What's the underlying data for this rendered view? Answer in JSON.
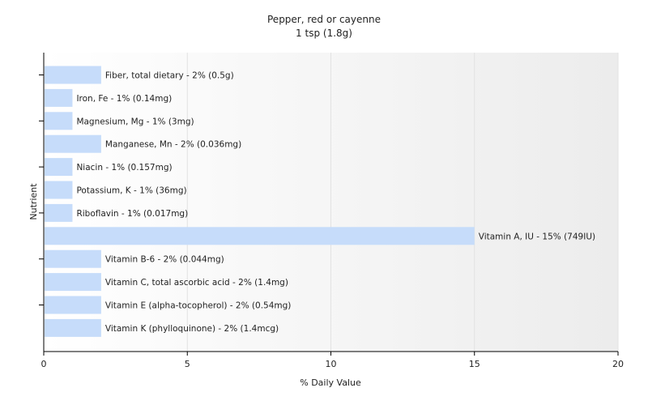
{
  "chart_data": {
    "type": "bar",
    "orientation": "horizontal",
    "title": "Pepper, red or cayenne",
    "subtitle": "1 tsp (1.8g)",
    "xlabel": "% Daily Value",
    "ylabel": "Nutrient",
    "xlim": [
      0,
      20
    ],
    "xticks": [
      "0",
      "5",
      "10",
      "15",
      "20"
    ],
    "grid": "vertical",
    "bar_color": "#c6dcfa",
    "background_gradient": [
      "#ffffff",
      "#ececec"
    ],
    "categories": [
      "Fiber, total dietary",
      "Iron, Fe",
      "Magnesium, Mg",
      "Manganese, Mn",
      "Niacin",
      "Potassium, K",
      "Riboflavin",
      "Vitamin A, IU",
      "Vitamin B-6",
      "Vitamin C, total ascorbic acid",
      "Vitamin E (alpha-tocopherol)",
      "Vitamin K (phylloquinone)"
    ],
    "values": [
      2,
      1,
      1,
      2,
      1,
      1,
      1,
      15,
      2,
      2,
      2,
      2
    ],
    "labels": [
      "Fiber, total dietary - 2% (0.5g)",
      "Iron, Fe - 1% (0.14mg)",
      "Magnesium, Mg - 1% (3mg)",
      "Manganese, Mn - 2% (0.036mg)",
      "Niacin - 1% (0.157mg)",
      "Potassium, K - 1% (36mg)",
      "Riboflavin - 1% (0.017mg)",
      "Vitamin A, IU - 15% (749IU)",
      "Vitamin B-6 - 2% (0.044mg)",
      "Vitamin C, total ascorbic acid - 2% (1.4mg)",
      "Vitamin E (alpha-tocopherol) - 2% (0.54mg)",
      "Vitamin K (phylloquinone) - 2% (1.4mcg)"
    ]
  }
}
